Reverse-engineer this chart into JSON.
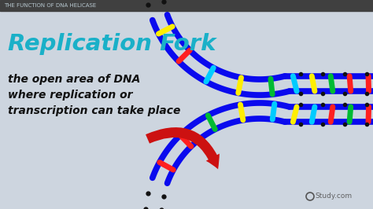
{
  "bg_color": "#cdd5df",
  "header_bg": "#404040",
  "header_text": "THE FUNCTION OF DNA HELICASE",
  "header_color": "#b8c8d0",
  "title": "Replication Fork",
  "title_color": "#1ab0c8",
  "body_text": "the open area of DNA\nwhere replication or\ntranscription can take place",
  "body_color": "#111111",
  "watermark": "Study.com",
  "dna_backbone_color": "#0a0aee",
  "base_colors": [
    "#ffee00",
    "#ff2020",
    "#00ccff",
    "#ffee00",
    "#00bb33",
    "#ff2020"
  ],
  "base_colors2": [
    "#00ccff",
    "#ffee00",
    "#00bb33",
    "#ff2020",
    "#00ccff"
  ],
  "dot_color": "#111111",
  "arrow_color": "#cc1111"
}
